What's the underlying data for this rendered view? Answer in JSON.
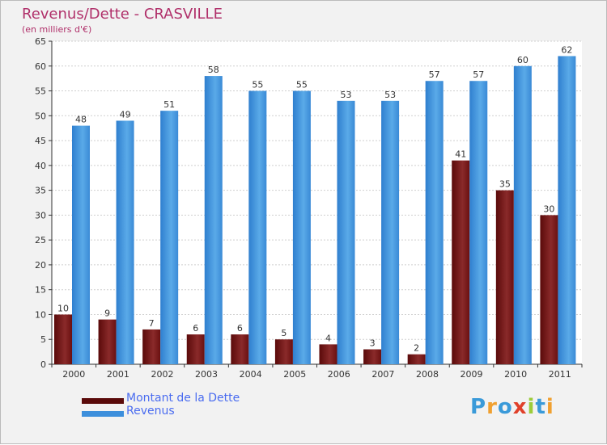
{
  "chart_data": {
    "type": "bar",
    "title": "Revenus/Dette - CRASVILLE",
    "subtitle": "(en milliers d'€)",
    "categories": [
      "2000",
      "2001",
      "2002",
      "2003",
      "2004",
      "2005",
      "2006",
      "2007",
      "2008",
      "2009",
      "2010",
      "2011"
    ],
    "series": [
      {
        "name": "Montant de la Dette",
        "values": [
          10,
          9,
          7,
          6,
          6,
          5,
          4,
          3,
          2,
          41,
          35,
          30
        ],
        "color": "#7a1a1a"
      },
      {
        "name": "Revenus",
        "values": [
          48,
          49,
          51,
          58,
          55,
          55,
          53,
          53,
          57,
          57,
          60,
          62
        ],
        "color": "#3d8fdc"
      }
    ],
    "yticks": [
      0,
      5,
      10,
      15,
      20,
      25,
      30,
      35,
      40,
      45,
      50,
      55,
      60,
      65
    ],
    "ylim": [
      0,
      65
    ],
    "grid": true,
    "legend_position": "bottom-left"
  },
  "logo": {
    "letters": [
      "P",
      "r",
      "o",
      "x",
      "i",
      "t",
      "i"
    ],
    "colors": [
      "#3a9ad9",
      "#f0a030",
      "#3a9ad9",
      "#e0402a",
      "#9ccc3a",
      "#3a9ad9",
      "#f0a030"
    ]
  }
}
